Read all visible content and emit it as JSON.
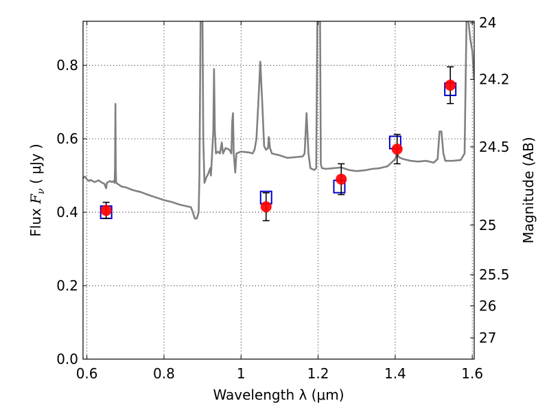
{
  "chart_data": {
    "type": "scatter",
    "xlabel": "Wavelength  λ (μm)",
    "ylabel": "Flux  F_ν  ( μJy )",
    "ylabel_parts": {
      "prefix": "Flux  ",
      "sym": "F",
      "sub": "ν",
      "suffix": "  ( μJy )"
    },
    "ylabel_right": "Magnitude (AB)",
    "xlim": [
      0.59,
      1.605
    ],
    "ylim": [
      0.0,
      0.92
    ],
    "x_ticks": [
      0.6,
      0.8,
      1.0,
      1.2,
      1.4,
      1.6
    ],
    "x_tick_labels": [
      "0.6",
      "0.8",
      "1",
      "1.2",
      "1.4",
      "1.6"
    ],
    "y_ticks": [
      0.0,
      0.2,
      0.4,
      0.6,
      0.8
    ],
    "y_tick_labels": [
      "0.0",
      "0.2",
      "0.4",
      "0.6",
      "0.8"
    ],
    "right_ticks": [
      {
        "label": "24",
        "flux": 0.916
      },
      {
        "label": "24.2",
        "flux": 0.762
      },
      {
        "label": "24.5",
        "flux": 0.578
      },
      {
        "label": "25",
        "flux": 0.365
      },
      {
        "label": "25.5",
        "flux": 0.23
      },
      {
        "label": "26",
        "flux": 0.145
      },
      {
        "label": "27",
        "flux": 0.058
      }
    ],
    "grid": true,
    "series": [
      {
        "kind": "model-spectrum",
        "color": "#808080",
        "points": [
          [
            0.59,
            0.493
          ],
          [
            0.595,
            0.497
          ],
          [
            0.6,
            0.49
          ],
          [
            0.605,
            0.485
          ],
          [
            0.61,
            0.488
          ],
          [
            0.62,
            0.482
          ],
          [
            0.63,
            0.487
          ],
          [
            0.64,
            0.48
          ],
          [
            0.645,
            0.478
          ],
          [
            0.648,
            0.47
          ],
          [
            0.65,
            0.465
          ],
          [
            0.652,
            0.48
          ],
          [
            0.66,
            0.485
          ],
          [
            0.665,
            0.482
          ],
          [
            0.67,
            0.485
          ],
          [
            0.672,
            0.48
          ],
          [
            0.673,
            0.52
          ],
          [
            0.674,
            0.695
          ],
          [
            0.675,
            0.52
          ],
          [
            0.676,
            0.48
          ],
          [
            0.69,
            0.47
          ],
          [
            0.7,
            0.468
          ],
          [
            0.72,
            0.46
          ],
          [
            0.74,
            0.455
          ],
          [
            0.76,
            0.447
          ],
          [
            0.78,
            0.44
          ],
          [
            0.8,
            0.433
          ],
          [
            0.82,
            0.428
          ],
          [
            0.84,
            0.421
          ],
          [
            0.86,
            0.416
          ],
          [
            0.87,
            0.414
          ],
          [
            0.875,
            0.4
          ],
          [
            0.88,
            0.383
          ],
          [
            0.885,
            0.383
          ],
          [
            0.89,
            0.4
          ],
          [
            0.892,
            0.5
          ],
          [
            0.895,
            0.92
          ],
          [
            0.9,
            0.92
          ],
          [
            0.902,
            0.6
          ],
          [
            0.905,
            0.48
          ],
          [
            0.91,
            0.495
          ],
          [
            0.915,
            0.505
          ],
          [
            0.92,
            0.52
          ],
          [
            0.922,
            0.5
          ],
          [
            0.925,
            0.56
          ],
          [
            0.928,
            0.62
          ],
          [
            0.93,
            0.79
          ],
          [
            0.932,
            0.62
          ],
          [
            0.935,
            0.56
          ],
          [
            0.94,
            0.565
          ],
          [
            0.945,
            0.56
          ],
          [
            0.95,
            0.59
          ],
          [
            0.953,
            0.56
          ],
          [
            0.96,
            0.575
          ],
          [
            0.97,
            0.57
          ],
          [
            0.975,
            0.56
          ],
          [
            0.977,
            0.645
          ],
          [
            0.979,
            0.67
          ],
          [
            0.981,
            0.56
          ],
          [
            0.985,
            0.508
          ],
          [
            0.988,
            0.56
          ],
          [
            1.0,
            0.565
          ],
          [
            1.02,
            0.563
          ],
          [
            1.03,
            0.56
          ],
          [
            1.035,
            0.57
          ],
          [
            1.04,
            0.6
          ],
          [
            1.045,
            0.7
          ],
          [
            1.05,
            0.81
          ],
          [
            1.055,
            0.7
          ],
          [
            1.06,
            0.58
          ],
          [
            1.065,
            0.57
          ],
          [
            1.07,
            0.575
          ],
          [
            1.072,
            0.605
          ],
          [
            1.075,
            0.575
          ],
          [
            1.08,
            0.56
          ],
          [
            1.1,
            0.555
          ],
          [
            1.12,
            0.548
          ],
          [
            1.14,
            0.55
          ],
          [
            1.16,
            0.552
          ],
          [
            1.165,
            0.56
          ],
          [
            1.17,
            0.67
          ],
          [
            1.175,
            0.56
          ],
          [
            1.18,
            0.52
          ],
          [
            1.19,
            0.515
          ],
          [
            1.195,
            0.52
          ],
          [
            1.198,
            0.92
          ],
          [
            1.205,
            0.92
          ],
          [
            1.207,
            0.53
          ],
          [
            1.21,
            0.52
          ],
          [
            1.22,
            0.518
          ],
          [
            1.24,
            0.52
          ],
          [
            1.26,
            0.522
          ],
          [
            1.28,
            0.515
          ],
          [
            1.3,
            0.512
          ],
          [
            1.32,
            0.514
          ],
          [
            1.34,
            0.518
          ],
          [
            1.36,
            0.52
          ],
          [
            1.38,
            0.525
          ],
          [
            1.39,
            0.535
          ],
          [
            1.4,
            0.545
          ],
          [
            1.405,
            0.56
          ],
          [
            1.41,
            0.55
          ],
          [
            1.42,
            0.545
          ],
          [
            1.44,
            0.54
          ],
          [
            1.46,
            0.538
          ],
          [
            1.48,
            0.54
          ],
          [
            1.5,
            0.535
          ],
          [
            1.51,
            0.545
          ],
          [
            1.515,
            0.62
          ],
          [
            1.52,
            0.62
          ],
          [
            1.525,
            0.56
          ],
          [
            1.53,
            0.54
          ],
          [
            1.55,
            0.54
          ],
          [
            1.57,
            0.542
          ],
          [
            1.58,
            0.56
          ],
          [
            1.585,
            0.92
          ],
          [
            1.59,
            0.92
          ],
          [
            1.595,
            0.87
          ],
          [
            1.6,
            0.84
          ],
          [
            1.605,
            0.76
          ]
        ]
      },
      {
        "kind": "observed",
        "color": "#ff0000",
        "points": [
          {
            "x": 0.65,
            "y": 0.405,
            "err": 0.022
          },
          {
            "x": 1.065,
            "y": 0.415,
            "err": 0.038
          },
          {
            "x": 1.26,
            "y": 0.49,
            "err": 0.042
          },
          {
            "x": 1.405,
            "y": 0.572,
            "err": 0.04
          },
          {
            "x": 1.543,
            "y": 0.746,
            "err": 0.05
          }
        ]
      },
      {
        "kind": "model-bandpass",
        "color": "#0000cc",
        "points": [
          {
            "x": 0.65,
            "y": 0.4
          },
          {
            "x": 1.065,
            "y": 0.44
          },
          {
            "x": 1.255,
            "y": 0.47
          },
          {
            "x": 1.4,
            "y": 0.59
          },
          {
            "x": 1.543,
            "y": 0.735
          }
        ]
      }
    ]
  }
}
